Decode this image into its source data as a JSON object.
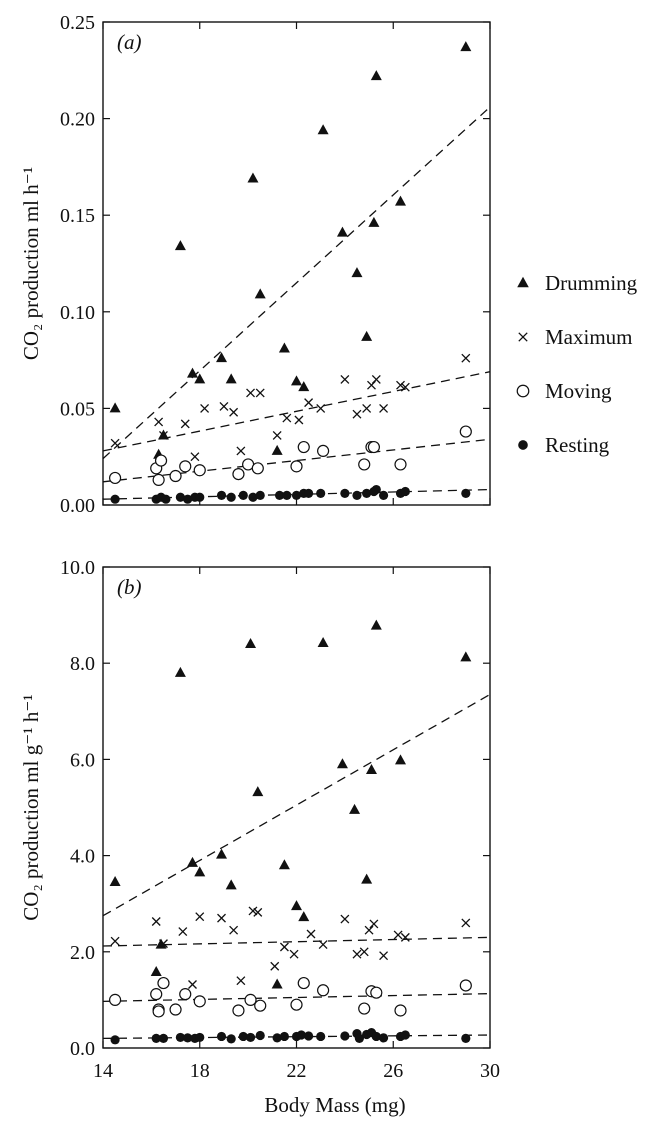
{
  "figure": {
    "xlabel": "Body Mass (mg)"
  },
  "legend": {
    "items": [
      {
        "label": "Drumming",
        "marker": "filled-triangle"
      },
      {
        "label": "Maximum",
        "marker": "x"
      },
      {
        "label": "Moving",
        "marker": "open-circle"
      },
      {
        "label": "Resting",
        "marker": "filled-circle"
      }
    ]
  },
  "chart_data": [
    {
      "type": "scatter",
      "panel_label": "(a)",
      "ylabel": "CO₂ production ml h⁻¹",
      "xlim": [
        14,
        30
      ],
      "ylim": [
        0,
        0.25
      ],
      "yticks": [
        "0.00",
        "0.05",
        "0.10",
        "0.15",
        "0.20",
        "0.25"
      ],
      "xticks": [
        "14",
        "18",
        "22",
        "26",
        "30"
      ],
      "series": [
        {
          "name": "Drumming",
          "marker": "filled-triangle",
          "x": [
            14.5,
            16.3,
            16.5,
            17.2,
            17.7,
            18.0,
            18.9,
            19.3,
            20.2,
            20.5,
            21.2,
            21.5,
            22.0,
            22.3,
            23.1,
            23.9,
            24.5,
            24.9,
            25.2,
            25.3,
            26.3,
            29.0
          ],
          "y": [
            0.05,
            0.026,
            0.036,
            0.134,
            0.068,
            0.065,
            0.076,
            0.065,
            0.169,
            0.109,
            0.028,
            0.081,
            0.064,
            0.061,
            0.194,
            0.141,
            0.12,
            0.087,
            0.146,
            0.222,
            0.157,
            0.237
          ],
          "trend": [
            [
              14,
              0.024
            ],
            [
              30,
              0.206
            ]
          ]
        },
        {
          "name": "Maximum",
          "marker": "x",
          "x": [
            14.5,
            16.3,
            16.5,
            17.4,
            17.8,
            18.2,
            19.0,
            19.4,
            19.7,
            20.1,
            20.5,
            21.2,
            21.6,
            22.1,
            22.3,
            22.5,
            23.0,
            24.0,
            24.5,
            24.9,
            25.1,
            25.3,
            25.6,
            26.3,
            26.5,
            29.0
          ],
          "y": [
            0.032,
            0.043,
            0.036,
            0.042,
            0.025,
            0.05,
            0.051,
            0.048,
            0.028,
            0.058,
            0.058,
            0.036,
            0.045,
            0.044,
            0.03,
            0.053,
            0.05,
            0.065,
            0.047,
            0.05,
            0.062,
            0.065,
            0.05,
            0.062,
            0.061,
            0.076
          ],
          "trend": [
            [
              14,
              0.028
            ],
            [
              30,
              0.069
            ]
          ]
        },
        {
          "name": "Moving",
          "marker": "open-circle",
          "x": [
            14.5,
            16.2,
            16.3,
            16.4,
            17.0,
            17.4,
            18.0,
            19.6,
            20.0,
            20.4,
            22.0,
            22.3,
            23.1,
            24.8,
            25.1,
            25.2,
            26.3,
            29.0
          ],
          "y": [
            0.014,
            0.019,
            0.013,
            0.023,
            0.015,
            0.02,
            0.018,
            0.016,
            0.021,
            0.019,
            0.02,
            0.03,
            0.028,
            0.021,
            0.03,
            0.03,
            0.021,
            0.038
          ],
          "trend": [
            [
              14,
              0.012
            ],
            [
              30,
              0.034
            ]
          ]
        },
        {
          "name": "Resting",
          "marker": "filled-circle",
          "x": [
            14.5,
            16.2,
            16.4,
            16.6,
            17.2,
            17.5,
            17.8,
            18.0,
            18.9,
            19.3,
            19.8,
            20.2,
            20.5,
            21.3,
            21.6,
            22.0,
            22.3,
            22.5,
            23.0,
            24.0,
            24.5,
            24.9,
            25.2,
            25.3,
            25.6,
            26.3,
            26.5,
            29.0
          ],
          "y": [
            0.003,
            0.003,
            0.004,
            0.003,
            0.004,
            0.003,
            0.004,
            0.004,
            0.005,
            0.004,
            0.005,
            0.004,
            0.005,
            0.005,
            0.005,
            0.005,
            0.006,
            0.006,
            0.006,
            0.006,
            0.005,
            0.006,
            0.007,
            0.008,
            0.005,
            0.006,
            0.007,
            0.006
          ],
          "trend": [
            [
              14,
              0.003
            ],
            [
              30,
              0.008
            ]
          ]
        }
      ]
    },
    {
      "type": "scatter",
      "panel_label": "(b)",
      "ylabel": "CO₂ production ml g⁻¹ h⁻¹",
      "xlim": [
        14,
        30
      ],
      "ylim": [
        0,
        10
      ],
      "yticks": [
        "0.0",
        "2.0",
        "4.0",
        "6.0",
        "8.0",
        "10.0"
      ],
      "xticks": [
        "14",
        "18",
        "22",
        "26",
        "30"
      ],
      "series": [
        {
          "name": "Drumming",
          "marker": "filled-triangle",
          "x": [
            14.5,
            16.2,
            16.4,
            17.2,
            17.7,
            18.0,
            18.9,
            19.3,
            20.1,
            20.4,
            21.2,
            21.5,
            22.0,
            22.3,
            23.1,
            23.9,
            24.4,
            24.9,
            25.1,
            25.3,
            26.3,
            29.0
          ],
          "y": [
            3.45,
            1.58,
            2.15,
            7.8,
            3.85,
            3.65,
            4.02,
            3.38,
            8.4,
            5.32,
            1.32,
            3.8,
            2.95,
            2.72,
            8.42,
            5.9,
            4.95,
            3.5,
            5.78,
            8.78,
            5.98,
            8.12
          ],
          "trend": [
            [
              14,
              2.75
            ],
            [
              30,
              7.35
            ]
          ]
        },
        {
          "name": "Maximum",
          "marker": "x",
          "x": [
            14.5,
            16.2,
            16.5,
            17.3,
            17.7,
            18.0,
            18.9,
            19.4,
            19.7,
            20.2,
            20.4,
            21.1,
            21.5,
            21.9,
            22.3,
            22.6,
            23.1,
            24.0,
            24.5,
            24.8,
            25.0,
            25.2,
            25.6,
            26.2,
            26.5,
            29.0
          ],
          "y": [
            2.22,
            2.63,
            2.17,
            2.42,
            1.32,
            2.73,
            2.7,
            2.45,
            1.4,
            2.85,
            2.82,
            1.7,
            2.1,
            1.95,
            1.35,
            2.37,
            2.15,
            2.68,
            1.95,
            2.0,
            2.45,
            2.58,
            1.92,
            2.35,
            2.3,
            2.6
          ],
          "trend": [
            [
              14,
              2.12
            ],
            [
              30,
              2.3
            ]
          ]
        },
        {
          "name": "Moving",
          "marker": "open-circle",
          "x": [
            14.5,
            16.2,
            16.3,
            16.3,
            16.5,
            17.0,
            17.4,
            18.0,
            19.6,
            20.1,
            20.5,
            22.0,
            22.3,
            23.1,
            24.8,
            25.1,
            25.3,
            26.3,
            29.0
          ],
          "y": [
            1.0,
            1.12,
            0.8,
            0.76,
            1.35,
            0.8,
            1.12,
            0.97,
            0.78,
            1.0,
            0.88,
            0.9,
            1.35,
            1.2,
            0.82,
            1.18,
            1.15,
            0.78,
            1.3
          ],
          "trend": [
            [
              14,
              0.97
            ],
            [
              30,
              1.13
            ]
          ]
        },
        {
          "name": "Resting",
          "marker": "filled-circle",
          "x": [
            14.5,
            16.2,
            16.5,
            17.2,
            17.5,
            17.8,
            18.0,
            18.9,
            19.3,
            19.8,
            20.1,
            20.5,
            21.2,
            21.5,
            22.0,
            22.2,
            22.5,
            23.0,
            24.0,
            24.5,
            24.6,
            24.9,
            25.1,
            25.3,
            25.6,
            26.3,
            26.5,
            29.0
          ],
          "y": [
            0.17,
            0.2,
            0.2,
            0.22,
            0.21,
            0.2,
            0.22,
            0.24,
            0.19,
            0.24,
            0.22,
            0.26,
            0.21,
            0.24,
            0.24,
            0.27,
            0.25,
            0.24,
            0.25,
            0.3,
            0.2,
            0.28,
            0.32,
            0.24,
            0.21,
            0.24,
            0.27,
            0.2
          ],
          "trend": [
            [
              14,
              0.2
            ],
            [
              30,
              0.27
            ]
          ]
        }
      ]
    }
  ]
}
